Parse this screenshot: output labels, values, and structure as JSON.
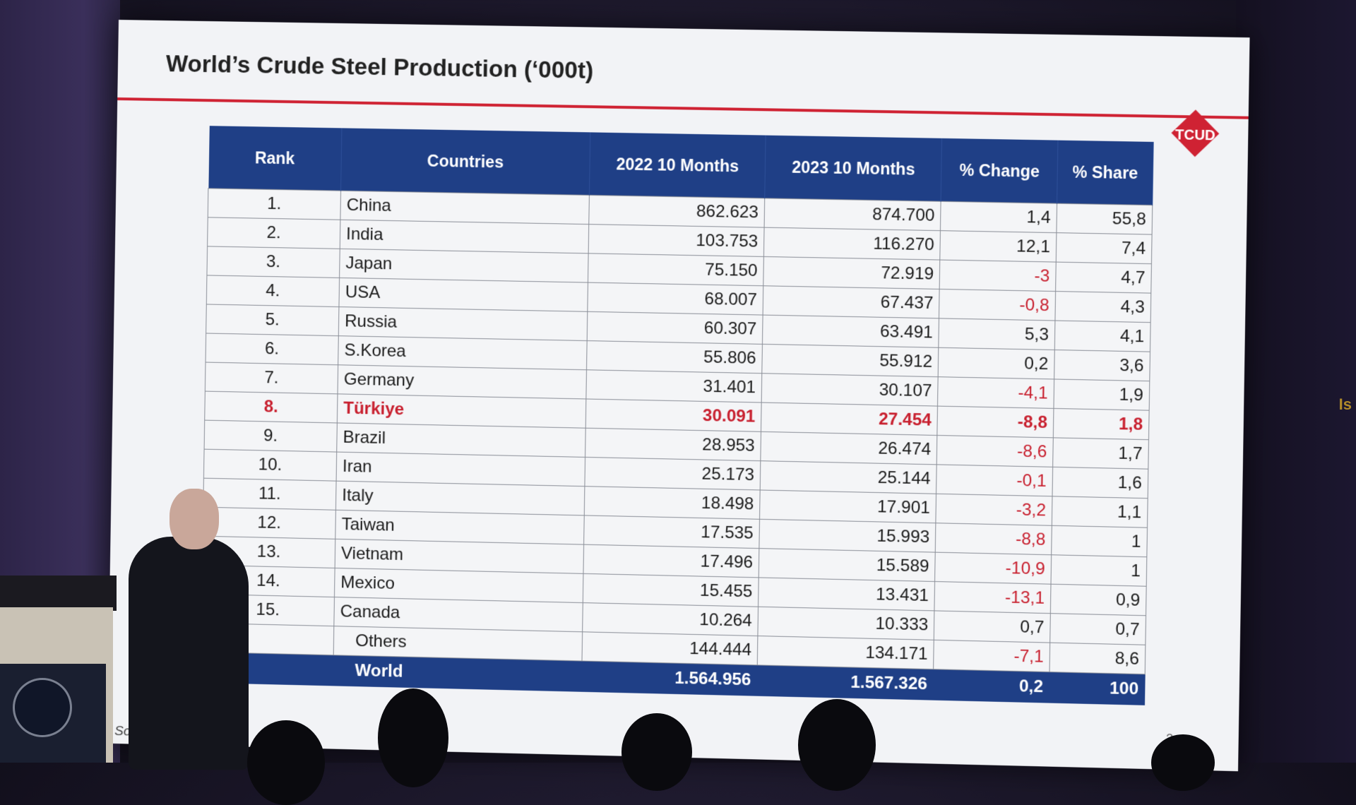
{
  "slide": {
    "title": "World’s Crude Steel Production (‘000t)",
    "logo_text": "TCUD",
    "page_number": "3",
    "source_text": "Sour          steel",
    "edge_text": "Is"
  },
  "colors": {
    "header_blue": "#1f3f86",
    "title_rule_red": "#cf2233",
    "negative_red": "#c8202f",
    "logo_red": "#cf2233"
  },
  "table": {
    "headers": {
      "rank": "Rank",
      "countries": "Countries",
      "y2022": "2022 10 Months",
      "y2023": "2023 10 Months",
      "change": "% Change",
      "share": "% Share"
    },
    "rows": [
      {
        "rank": "1.",
        "country": "China",
        "y2022": "862.623",
        "y2023": "874.700",
        "change": "1,4",
        "share": "55,8"
      },
      {
        "rank": "2.",
        "country": "India",
        "y2022": "103.753",
        "y2023": "116.270",
        "change": "12,1",
        "share": "7,4"
      },
      {
        "rank": "3.",
        "country": "Japan",
        "y2022": "75.150",
        "y2023": "72.919",
        "change": "-3",
        "share": "4,7"
      },
      {
        "rank": "4.",
        "country": "USA",
        "y2022": "68.007",
        "y2023": "67.437",
        "change": "-0,8",
        "share": "4,3"
      },
      {
        "rank": "5.",
        "country": "Russia",
        "y2022": "60.307",
        "y2023": "63.491",
        "change": "5,3",
        "share": "4,1"
      },
      {
        "rank": "6.",
        "country": "S.Korea",
        "y2022": "55.806",
        "y2023": "55.912",
        "change": "0,2",
        "share": "3,6"
      },
      {
        "rank": "7.",
        "country": "Germany",
        "y2022": "31.401",
        "y2023": "30.107",
        "change": "-4,1",
        "share": "1,9"
      },
      {
        "rank": "8.",
        "country": "Türkiye",
        "y2022": "30.091",
        "y2023": "27.454",
        "change": "-8,8",
        "share": "1,8"
      },
      {
        "rank": "9.",
        "country": "Brazil",
        "y2022": "28.953",
        "y2023": "26.474",
        "change": "-8,6",
        "share": "1,7"
      },
      {
        "rank": "10.",
        "country": "Iran",
        "y2022": "25.173",
        "y2023": "25.144",
        "change": "-0,1",
        "share": "1,6"
      },
      {
        "rank": "11.",
        "country": "Italy",
        "y2022": "18.498",
        "y2023": "17.901",
        "change": "-3,2",
        "share": "1,1"
      },
      {
        "rank": "12.",
        "country": "Taiwan",
        "y2022": "17.535",
        "y2023": "15.993",
        "change": "-8,8",
        "share": "1"
      },
      {
        "rank": "13.",
        "country": "Vietnam",
        "y2022": "17.496",
        "y2023": "15.589",
        "change": "-10,9",
        "share": "1"
      },
      {
        "rank": "14.",
        "country": "Mexico",
        "y2022": "15.455",
        "y2023": "13.431",
        "change": "-13,1",
        "share": "0,9"
      },
      {
        "rank": "15.",
        "country": "Canada",
        "y2022": "10.264",
        "y2023": "10.333",
        "change": "0,7",
        "share": "0,7"
      }
    ],
    "others": {
      "label": "Others",
      "y2022": "144.444",
      "y2023": "134.171",
      "change": "-7,1",
      "share": "8,6"
    },
    "total": {
      "label": "World",
      "y2022": "1.564.956",
      "y2023": "1.567.326",
      "change": "0,2",
      "share": "100"
    },
    "highlight_rank": "8."
  }
}
